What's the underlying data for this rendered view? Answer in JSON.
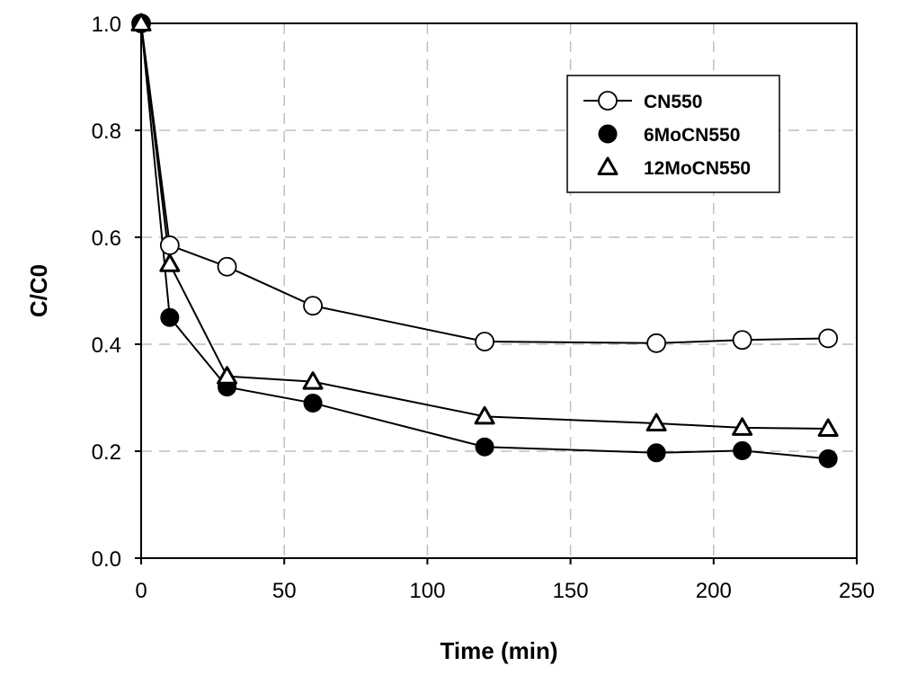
{
  "chart_data": {
    "type": "line",
    "title": "",
    "xlabel": "Time (min)",
    "ylabel": "C/C0",
    "xlim": [
      0,
      250
    ],
    "ylim": [
      0,
      1.0
    ],
    "xticks": [
      0,
      50,
      100,
      150,
      200,
      250
    ],
    "yticks": [
      0.0,
      0.2,
      0.4,
      0.6,
      0.8,
      1.0
    ],
    "xtick_labels": [
      "0",
      "50",
      "100",
      "150",
      "200",
      "250"
    ],
    "ytick_labels": [
      "0.0",
      "0.2",
      "0.4",
      "0.6",
      "0.8",
      "1.0"
    ],
    "grid": true,
    "grid_style": "dashed",
    "legend_position": "top-right",
    "x": [
      0,
      10,
      30,
      60,
      120,
      180,
      210,
      240
    ],
    "series": [
      {
        "name": "CN550",
        "marker": "open-circle",
        "values": [
          1.0,
          0.585,
          0.545,
          0.472,
          0.405,
          0.402,
          0.408,
          0.411
        ]
      },
      {
        "name": "6MoCN550",
        "marker": "filled-circle",
        "values": [
          1.0,
          0.45,
          0.32,
          0.29,
          0.208,
          0.197,
          0.201,
          0.186
        ]
      },
      {
        "name": "12MoCN550",
        "marker": "open-triangle",
        "values": [
          1.0,
          0.55,
          0.34,
          0.33,
          0.265,
          0.252,
          0.244,
          0.242
        ]
      }
    ],
    "colors": {
      "line": "#000000",
      "grid": "#bfbfbf",
      "background": "#ffffff"
    }
  }
}
